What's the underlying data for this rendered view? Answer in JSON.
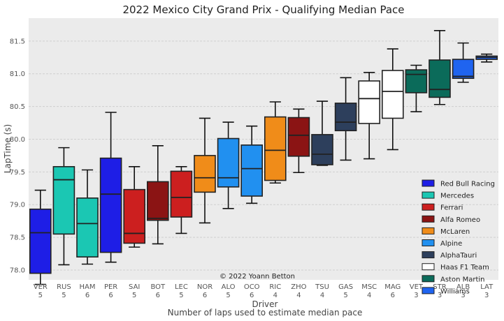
{
  "chart_data": {
    "type": "box",
    "title": "2022 Mexico City Grand Prix - Qualifying Median Pace",
    "xlabel": "Driver",
    "xlabel2": "Number of laps used to estimate median pace",
    "ylabel": "LapTime (s)",
    "ylim": [
      77.85,
      81.85
    ],
    "yticks": [
      78.0,
      78.5,
      79.0,
      79.5,
      80.0,
      80.5,
      81.0,
      81.5
    ],
    "ytick_labels": [
      "78.0",
      "78.5",
      "79.0",
      "79.5",
      "80.0",
      "80.5",
      "81.0",
      "81.5"
    ],
    "grid": true,
    "credit": "© 2022 Yoann Betton",
    "legend_position": "lower-right",
    "legend": [
      {
        "name": "Red Bull Racing",
        "color": "#1e1ee6"
      },
      {
        "name": "Mercedes",
        "color": "#1bc7b3"
      },
      {
        "name": "Ferrari",
        "color": "#cc1f1f"
      },
      {
        "name": "Alfa Romeo",
        "color": "#8b1414"
      },
      {
        "name": "McLaren",
        "color": "#f08c19"
      },
      {
        "name": "Alpine",
        "color": "#2190f0"
      },
      {
        "name": "AlphaTauri",
        "color": "#2d3f5c"
      },
      {
        "name": "Haas F1 Team",
        "color": "#ffffff"
      },
      {
        "name": "Aston Martin",
        "color": "#0b6b5a"
      },
      {
        "name": "Williams",
        "color": "#1f64f0"
      }
    ],
    "drivers": [
      {
        "name": "VER",
        "laps": "5",
        "color": "#1e1ee6",
        "min": 77.78,
        "q1": 77.95,
        "median": 78.57,
        "q3": 78.93,
        "max": 79.22
      },
      {
        "name": "RUS",
        "laps": "5",
        "color": "#1bc7b3",
        "min": 78.08,
        "q1": 78.55,
        "median": 79.38,
        "q3": 79.58,
        "max": 79.87
      },
      {
        "name": "HAM",
        "laps": "6",
        "color": "#1bc7b3",
        "min": 78.09,
        "q1": 78.2,
        "median": 78.71,
        "q3": 79.1,
        "max": 79.53
      },
      {
        "name": "PER",
        "laps": "6",
        "color": "#1e1ee6",
        "min": 78.12,
        "q1": 78.27,
        "median": 79.16,
        "q3": 79.71,
        "max": 80.41
      },
      {
        "name": "SAI",
        "laps": "5",
        "color": "#cc1f1f",
        "min": 78.35,
        "q1": 78.41,
        "median": 78.56,
        "q3": 79.23,
        "max": 79.58
      },
      {
        "name": "BOT",
        "laps": "6",
        "color": "#8b1414",
        "min": 78.4,
        "q1": 78.76,
        "median": 78.79,
        "q3": 79.35,
        "max": 79.9
      },
      {
        "name": "LEC",
        "laps": "5",
        "color": "#cc1f1f",
        "min": 78.56,
        "q1": 78.81,
        "median": 79.11,
        "q3": 79.51,
        "max": 79.58
      },
      {
        "name": "NOR",
        "laps": "6",
        "color": "#f08c19",
        "min": 78.72,
        "q1": 79.19,
        "median": 79.41,
        "q3": 79.75,
        "max": 80.32
      },
      {
        "name": "ALO",
        "laps": "5",
        "color": "#2190f0",
        "min": 78.94,
        "q1": 79.27,
        "median": 79.41,
        "q3": 80.01,
        "max": 80.26
      },
      {
        "name": "OCO",
        "laps": "6",
        "color": "#2190f0",
        "min": 79.02,
        "q1": 79.13,
        "median": 79.55,
        "q3": 79.91,
        "max": 80.2
      },
      {
        "name": "RIC",
        "laps": "4",
        "color": "#f08c19",
        "min": 79.33,
        "q1": 79.37,
        "median": 79.83,
        "q3": 80.34,
        "max": 80.57
      },
      {
        "name": "ZHO",
        "laps": "4",
        "color": "#8b1414",
        "min": 79.49,
        "q1": 79.74,
        "median": 80.06,
        "q3": 80.33,
        "max": 80.46
      },
      {
        "name": "TSU",
        "laps": "4",
        "color": "#2d3f5c",
        "min": 79.6,
        "q1": 79.61,
        "median": 79.77,
        "q3": 80.07,
        "max": 80.58
      },
      {
        "name": "GAS",
        "laps": "5",
        "color": "#2d3f5c",
        "min": 79.68,
        "q1": 80.13,
        "median": 80.26,
        "q3": 80.55,
        "max": 80.94
      },
      {
        "name": "MSC",
        "laps": "4",
        "color": "#ffffff",
        "min": 79.7,
        "q1": 80.24,
        "median": 80.62,
        "q3": 80.89,
        "max": 81.02
      },
      {
        "name": "MAG",
        "laps": "6",
        "color": "#ffffff",
        "min": 79.84,
        "q1": 80.32,
        "median": 80.73,
        "q3": 81.05,
        "max": 81.38
      },
      {
        "name": "VET",
        "laps": "3",
        "color": "#0b6b5a",
        "min": 80.42,
        "q1": 80.71,
        "median": 80.99,
        "q3": 81.06,
        "max": 81.13
      },
      {
        "name": "STR",
        "laps": "3",
        "color": "#0b6b5a",
        "min": 80.53,
        "q1": 80.64,
        "median": 80.76,
        "q3": 81.21,
        "max": 81.66
      },
      {
        "name": "ALB",
        "laps": "3",
        "color": "#1f64f0",
        "min": 80.87,
        "q1": 80.93,
        "median": 80.96,
        "q3": 81.22,
        "max": 81.47
      },
      {
        "name": "LAT",
        "laps": "3",
        "color": "#1f64f0",
        "min": 81.18,
        "q1": 81.22,
        "median": 81.25,
        "q3": 81.27,
        "max": 81.3
      }
    ]
  }
}
